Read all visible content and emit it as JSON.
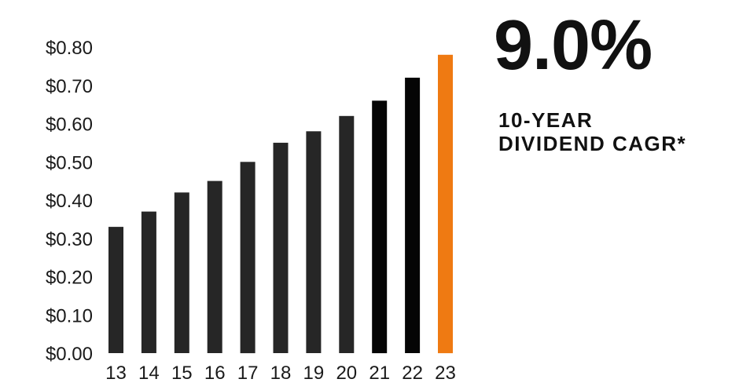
{
  "headline": "9.0%",
  "caption": {
    "line1": "10-YEAR",
    "line2": "DIVIDEND CAGR*"
  },
  "colors": {
    "bar_default": "#262626",
    "bar_recent": "#050505",
    "bar_highlight": "#ef7a12",
    "text": "#1a1a1a"
  },
  "chart_data": {
    "type": "bar",
    "title": "",
    "xlabel": "",
    "ylabel": "",
    "categories": [
      "13",
      "14",
      "15",
      "16",
      "17",
      "18",
      "19",
      "20",
      "21",
      "22",
      "23"
    ],
    "values": [
      0.33,
      0.37,
      0.42,
      0.45,
      0.5,
      0.55,
      0.58,
      0.62,
      0.66,
      0.72,
      0.78
    ],
    "highlight_index": 10,
    "ylim": [
      0,
      0.8
    ],
    "y_ticks": [
      0.0,
      0.1,
      0.2,
      0.3,
      0.4,
      0.5,
      0.6,
      0.7,
      0.8
    ],
    "y_tick_labels": [
      "$0.00",
      "$0.10",
      "$0.20",
      "$0.30",
      "$0.40",
      "$0.50",
      "$0.60",
      "$0.70",
      "$0.80"
    ],
    "grid": false,
    "legend": "none"
  }
}
